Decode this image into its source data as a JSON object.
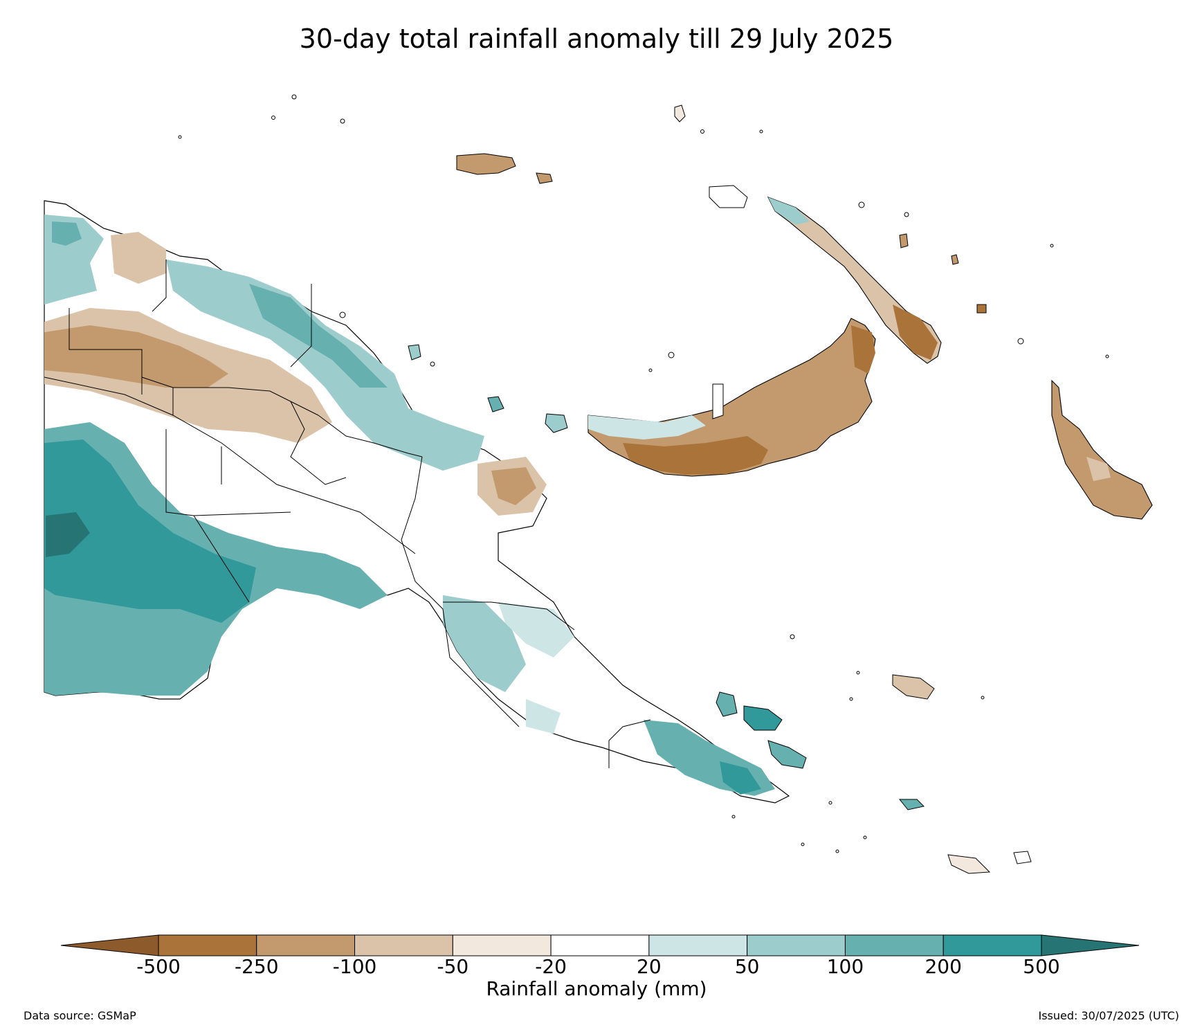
{
  "title": "30-day total rainfall anomaly till 29 July 2025",
  "colorbar": {
    "label": "Rainfall anomaly (mm)",
    "ticks": [
      "-500",
      "-250",
      "-100",
      "-50",
      "-20",
      "20",
      "50",
      "100",
      "200",
      "500"
    ],
    "under_color": "#8c5a2b",
    "over_color": "#267574",
    "colors": [
      "#aa733a",
      "#c29a6d",
      "#dbc3aa",
      "#f2e8de",
      "#ffffff",
      "#cde5e5",
      "#9dcccc",
      "#66b1b0",
      "#31999a"
    ]
  },
  "footer": {
    "source": "Data source: GSMaP",
    "issued": "Issued: 30/07/2025 (UTC)"
  },
  "legend_colors": {
    "strong_dry": "#aa733a",
    "dry": "#c29a6d",
    "moderate_dry": "#dbc3aa",
    "slight_dry": "#f2e8de",
    "normal": "#ffffff",
    "slight_wet": "#cde5e5",
    "moderate_wet": "#9dcccc",
    "wet": "#66b1b0",
    "strong_wet": "#31999a",
    "extreme_wet": "#267574"
  }
}
